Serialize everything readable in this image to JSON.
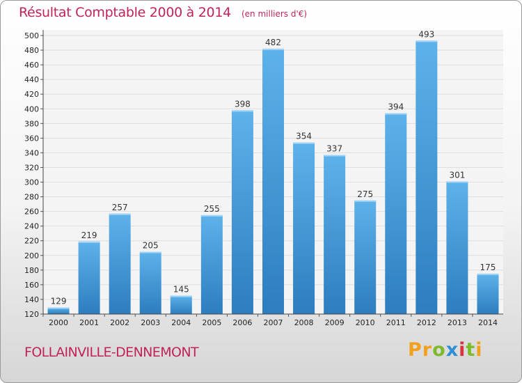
{
  "chart_data": {
    "type": "bar",
    "title": "Résultat Comptable 2000 à 2014",
    "unit": "(en milliers d'€)",
    "categories": [
      "2000",
      "2001",
      "2002",
      "2003",
      "2004",
      "2005",
      "2006",
      "2007",
      "2008",
      "2009",
      "2010",
      "2011",
      "2012",
      "2013",
      "2014"
    ],
    "values": [
      129,
      219,
      257,
      205,
      145,
      255,
      398,
      482,
      354,
      337,
      275,
      394,
      493,
      301,
      175
    ],
    "ylim": [
      120,
      500
    ],
    "ytick_step": 20,
    "grid": true,
    "xlabel": "",
    "ylabel": ""
  },
  "footer": {
    "city": "FOLLAINVILLE-DENNEMONT",
    "logo_letters": [
      "P",
      "r",
      "o",
      "x",
      "i",
      "t",
      "i"
    ]
  },
  "colors": {
    "accent": "#c0235a",
    "bar_light": "#5eb2ea",
    "bar_dark": "#2d7dbf",
    "logo": [
      "#f2a01e",
      "#f2a01e",
      "#7dbb2c",
      "#2e8fd6",
      "#d8343d",
      "#7dbb2c",
      "#f2a01e"
    ]
  }
}
